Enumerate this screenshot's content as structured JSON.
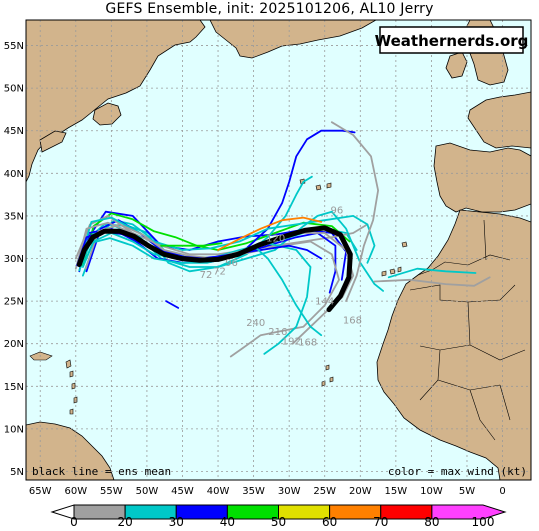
{
  "title": "GEFS Ensemble, init: 2025101206, AL10 Jerry",
  "brand": "Weathernerds.org",
  "footer_left": "black line = ens mean",
  "footer_right": "color = max wind (kt)",
  "lat_labels": [
    "55N",
    "50N",
    "45N",
    "40N",
    "35N",
    "30N",
    "25N",
    "20N",
    "15N",
    "10N",
    "5N"
  ],
  "lon_labels": [
    "65W",
    "60W",
    "55W",
    "50W",
    "45W",
    "40W",
    "35W",
    "30W",
    "25W",
    "20W",
    "15W",
    "10W",
    "5W",
    "0"
  ],
  "colors": {
    "ocean": "#e0ffff",
    "land": "#d2b48c",
    "grid": "#9a9a9a",
    "ens_mean": "#000000"
  },
  "colorbar": {
    "labels": [
      "0",
      "20",
      "30",
      "40",
      "50",
      "60",
      "70",
      "80",
      "100"
    ],
    "colors": [
      "#a0a0a0",
      "#00c8c8",
      "#0000ff",
      "#00e000",
      "#e0e000",
      "#ff8000",
      "#ff0000",
      "#ff40ff"
    ]
  },
  "hour_labels": [
    {
      "text": "96",
      "lon": -23.3,
      "lat": 35.3
    },
    {
      "text": "96",
      "lon": -38.1,
      "lat": 29.1
    },
    {
      "text": "72",
      "lon": -39.8,
      "lat": 28.1
    },
    {
      "text": "72",
      "lon": -41.7,
      "lat": 27.7
    },
    {
      "text": "120",
      "lon": -31.9,
      "lat": 32.0
    },
    {
      "text": "144",
      "lon": -25.0,
      "lat": 24.6
    },
    {
      "text": "240",
      "lon": -34.7,
      "lat": 22.1
    },
    {
      "text": "216",
      "lon": -31.6,
      "lat": 21.0
    },
    {
      "text": "192",
      "lon": -29.7,
      "lat": 19.9
    },
    {
      "text": "168",
      "lon": -27.4,
      "lat": 19.8
    },
    {
      "text": "168",
      "lon": -21.1,
      "lat": 22.4
    }
  ],
  "ens_mean": [
    [
      -59.5,
      29.3
    ],
    [
      -58.8,
      31.0
    ],
    [
      -57.6,
      32.5
    ],
    [
      -56.0,
      33.2
    ],
    [
      -53.8,
      33.2
    ],
    [
      -51.8,
      32.6
    ],
    [
      -49.8,
      31.5
    ],
    [
      -47.6,
      30.5
    ],
    [
      -45.2,
      30.0
    ],
    [
      -42.6,
      29.8
    ],
    [
      -40.0,
      29.9
    ],
    [
      -37.2,
      30.5
    ],
    [
      -34.2,
      31.6
    ],
    [
      -31.0,
      32.5
    ],
    [
      -27.8,
      33.3
    ],
    [
      -25.0,
      33.6
    ],
    [
      -22.8,
      32.8
    ],
    [
      -21.4,
      30.5
    ],
    [
      -21.6,
      27.8
    ],
    [
      -22.8,
      25.6
    ],
    [
      -24.4,
      24.0
    ]
  ],
  "tracks": [
    {
      "color": "#00c8c8",
      "points": [
        [
          -59.3,
          29.0
        ],
        [
          -58.0,
          32.5
        ],
        [
          -56.0,
          34.0
        ],
        [
          -52.6,
          33.8
        ],
        [
          -49.8,
          33.0
        ],
        [
          -47.6,
          31.0
        ],
        [
          -44.0,
          30.0
        ],
        [
          -40.0,
          30.0
        ],
        [
          -36.0,
          31.0
        ],
        [
          -32.0,
          32.0
        ],
        [
          -28.0,
          33.0
        ],
        [
          -25.0,
          33.5
        ],
        [
          -22.0,
          33.0
        ],
        [
          -20.5,
          31.0
        ]
      ]
    },
    {
      "color": "#0000ff",
      "points": [
        [
          -59.5,
          28.5
        ],
        [
          -58.6,
          32.0
        ],
        [
          -55.8,
          35.5
        ],
        [
          -52.0,
          35.0
        ],
        [
          -48.0,
          31.5
        ],
        [
          -44.0,
          31.0
        ],
        [
          -40.0,
          32.0
        ],
        [
          -36.0,
          32.6
        ],
        [
          -32.0,
          32.8
        ],
        [
          -28.0,
          33.4
        ],
        [
          -24.0,
          33.0
        ],
        [
          -22.0,
          30.8
        ],
        [
          -22.6,
          27.5
        ]
      ]
    },
    {
      "color": "#00e000",
      "points": [
        [
          -59.0,
          29.2
        ],
        [
          -57.5,
          33.8
        ],
        [
          -55.0,
          35.3
        ],
        [
          -52.0,
          34.6
        ],
        [
          -49.0,
          33.2
        ],
        [
          -46.0,
          32.5
        ],
        [
          -43.0,
          31.5
        ],
        [
          -40.0,
          31.0
        ],
        [
          -36.0,
          31.8
        ],
        [
          -32.0,
          33.0
        ],
        [
          -28.0,
          34.2
        ],
        [
          -24.0,
          33.8
        ],
        [
          -21.5,
          32.0
        ]
      ]
    },
    {
      "color": "#00c8c8",
      "points": [
        [
          -59.0,
          28.0
        ],
        [
          -57.0,
          32.5
        ],
        [
          -54.6,
          34.5
        ],
        [
          -52.0,
          34.0
        ],
        [
          -49.6,
          32.5
        ],
        [
          -47.0,
          29.5
        ],
        [
          -44.0,
          28.5
        ],
        [
          -40.0,
          29.0
        ],
        [
          -36.0,
          30.5
        ],
        [
          -33.0,
          32.5
        ],
        [
          -30.5,
          35.0
        ],
        [
          -29.0,
          37.5
        ],
        [
          -28.0,
          39.0
        ],
        [
          -26.8,
          39.6
        ]
      ]
    },
    {
      "color": "#0000ff",
      "points": [
        [
          -58.5,
          28.5
        ],
        [
          -56.5,
          33.5
        ],
        [
          -54.0,
          34.5
        ],
        [
          -51.0,
          33.0
        ],
        [
          -48.0,
          31.0
        ],
        [
          -44.0,
          30.0
        ],
        [
          -40.0,
          30.2
        ],
        [
          -36.0,
          31.2
        ],
        [
          -33.0,
          33.5
        ],
        [
          -31.0,
          36.5
        ],
        [
          -30.0,
          39.0
        ],
        [
          -29.0,
          42.0
        ],
        [
          -27.5,
          44.0
        ],
        [
          -25.5,
          45.0
        ],
        [
          -22.5,
          45.0
        ],
        [
          -20.8,
          44.8
        ]
      ]
    },
    {
      "color": "#a0a0a0",
      "points": [
        [
          -60.0,
          30.0
        ],
        [
          -58.0,
          34.0
        ],
        [
          -55.5,
          35.0
        ],
        [
          -52.0,
          33.0
        ],
        [
          -48.0,
          31.5
        ],
        [
          -44.0,
          30.5
        ],
        [
          -40.0,
          30.5
        ],
        [
          -36.0,
          31.0
        ],
        [
          -32.0,
          31.5
        ],
        [
          -28.0,
          32.0
        ],
        [
          -24.0,
          32.5
        ],
        [
          -21.0,
          33.0
        ],
        [
          -19.0,
          34.0
        ]
      ]
    },
    {
      "color": "#00c8c8",
      "points": [
        [
          -58.8,
          29.5
        ],
        [
          -57.0,
          33.0
        ],
        [
          -54.5,
          33.8
        ],
        [
          -51.0,
          32.5
        ],
        [
          -48.0,
          30.0
        ],
        [
          -44.0,
          29.0
        ],
        [
          -40.0,
          29.0
        ],
        [
          -36.0,
          30.0
        ],
        [
          -32.0,
          31.0
        ],
        [
          -28.0,
          33.8
        ],
        [
          -26.0,
          35.0
        ],
        [
          -24.0,
          35.5
        ],
        [
          -22.0,
          33.5
        ],
        [
          -20.0,
          29.5
        ],
        [
          -18.0,
          27.0
        ],
        [
          -16.8,
          26.2
        ]
      ]
    },
    {
      "color": "#0000ff",
      "points": [
        [
          -59.6,
          29.6
        ],
        [
          -58.2,
          33.0
        ],
        [
          -55.0,
          33.5
        ],
        [
          -51.5,
          32.0
        ],
        [
          -48.5,
          30.0
        ],
        [
          -45.0,
          29.5
        ],
        [
          -41.0,
          29.6
        ],
        [
          -37.0,
          30.5
        ],
        [
          -33.0,
          31.5
        ],
        [
          -29.0,
          32.5
        ],
        [
          -26.0,
          33.0
        ],
        [
          -23.5,
          31.5
        ],
        [
          -23.5,
          28.5
        ],
        [
          -24.3,
          26.0
        ]
      ]
    },
    {
      "color": "#00c8c8",
      "points": [
        [
          -59.2,
          30.3
        ],
        [
          -57.8,
          34.3
        ],
        [
          -55.0,
          34.8
        ],
        [
          -52.0,
          33.5
        ],
        [
          -49.0,
          32.0
        ],
        [
          -45.0,
          31.0
        ],
        [
          -41.0,
          31.2
        ],
        [
          -37.0,
          32.0
        ],
        [
          -33.0,
          33.5
        ],
        [
          -29.0,
          34.0
        ],
        [
          -25.0,
          34.5
        ],
        [
          -21.0,
          35.0
        ],
        [
          -19.0,
          34.0
        ],
        [
          -18.0,
          31.5
        ],
        [
          -19.0,
          29.5
        ]
      ]
    },
    {
      "color": "#a0a0a0",
      "points": [
        [
          -58.6,
          28.8
        ],
        [
          -56.8,
          33.2
        ],
        [
          -53.8,
          34.0
        ],
        [
          -50.6,
          32.8
        ],
        [
          -47.6,
          31.0
        ],
        [
          -44.0,
          30.3
        ],
        [
          -40.0,
          30.0
        ],
        [
          -35.0,
          30.8
        ],
        [
          -31.0,
          31.5
        ],
        [
          -27.0,
          32.0
        ],
        [
          -24.0,
          30.5
        ],
        [
          -23.0,
          27.5
        ],
        [
          -25.0,
          24.5
        ],
        [
          -28.0,
          22.0
        ],
        [
          -31.0,
          21.5
        ],
        [
          -34.0,
          21.0
        ],
        [
          -36.5,
          19.5
        ],
        [
          -38.2,
          18.5
        ]
      ]
    },
    {
      "color": "#00c8c8",
      "points": [
        [
          -59.0,
          29.0
        ],
        [
          -57.5,
          32.0
        ],
        [
          -55.0,
          33.0
        ],
        [
          -52.0,
          32.0
        ],
        [
          -49.0,
          30.5
        ],
        [
          -45.0,
          30.0
        ],
        [
          -41.0,
          30.0
        ],
        [
          -37.0,
          31.0
        ],
        [
          -33.0,
          31.8
        ],
        [
          -29.0,
          31.0
        ],
        [
          -27.0,
          29.0
        ],
        [
          -27.5,
          25.5
        ],
        [
          -29.0,
          22.0
        ],
        [
          -31.5,
          20.0
        ],
        [
          -33.5,
          18.8
        ]
      ]
    },
    {
      "color": "#a0a0a0",
      "points": [
        [
          -60.0,
          28.8
        ],
        [
          -58.5,
          33.5
        ],
        [
          -55.5,
          34.2
        ],
        [
          -52.0,
          33.0
        ],
        [
          -49.0,
          31.0
        ],
        [
          -45.0,
          30.0
        ],
        [
          -41.0,
          30.0
        ],
        [
          -37.0,
          30.8
        ],
        [
          -33.0,
          32.0
        ],
        [
          -29.0,
          33.0
        ],
        [
          -25.0,
          33.0
        ],
        [
          -22.0,
          31.0
        ],
        [
          -21.0,
          28.0
        ],
        [
          -22.5,
          25.5
        ],
        [
          -24.5,
          24.0
        ],
        [
          -27.0,
          22.0
        ],
        [
          -29.5,
          20.0
        ]
      ]
    },
    {
      "color": "#0000ff",
      "points": [
        [
          -59.8,
          29.2
        ],
        [
          -58.5,
          32.5
        ],
        [
          -56.0,
          33.2
        ],
        [
          -53.0,
          32.8
        ],
        [
          -50.0,
          31.5
        ],
        [
          -46.0,
          30.3
        ],
        [
          -42.0,
          30.0
        ],
        [
          -38.0,
          30.5
        ],
        [
          -34.0,
          31.0
        ],
        [
          -30.0,
          31.5
        ],
        [
          -27.5,
          31.0
        ],
        [
          -25.5,
          30.0
        ]
      ]
    },
    {
      "color": "#00c8c8",
      "points": [
        [
          -59.5,
          28.6
        ],
        [
          -58.0,
          31.8
        ],
        [
          -55.2,
          32.4
        ],
        [
          -52.0,
          31.5
        ],
        [
          -49.0,
          30.0
        ],
        [
          -45.5,
          29.5
        ],
        [
          -41.5,
          29.5
        ],
        [
          -38.0,
          30.2
        ],
        [
          -35.0,
          31.5
        ],
        [
          -33.0,
          30.0
        ],
        [
          -31.0,
          27.5
        ],
        [
          -29.0,
          24.5
        ],
        [
          -27.0,
          22.0
        ],
        [
          -25.5,
          21.0
        ]
      ]
    },
    {
      "color": "#ff8000",
      "points": [
        [
          -40.0,
          31.0
        ],
        [
          -37.0,
          32.3
        ],
        [
          -34.0,
          33.5
        ],
        [
          -31.0,
          34.5
        ],
        [
          -28.0,
          34.8
        ],
        [
          -25.5,
          34.3
        ]
      ]
    },
    {
      "color": "#00e000",
      "points": [
        [
          -48.0,
          31.5
        ],
        [
          -45.0,
          31.5
        ],
        [
          -42.0,
          31.5
        ],
        [
          -39.5,
          31.8
        ]
      ]
    },
    {
      "color": "#0000ff",
      "points": [
        [
          -47.3,
          25.0
        ],
        [
          -45.6,
          24.2
        ]
      ]
    },
    {
      "color": "#a0a0a0",
      "points": [
        [
          -24.0,
          46.0
        ],
        [
          -21.0,
          44.5
        ],
        [
          -18.5,
          42.0
        ],
        [
          -17.5,
          38.0
        ],
        [
          -18.2,
          34.5
        ],
        [
          -19.5,
          31.5
        ],
        [
          -20.5,
          28.0
        ],
        [
          -22.0,
          25.0
        ]
      ]
    },
    {
      "color": "#a0a0a0",
      "points": [
        [
          -18.0,
          27.3
        ],
        [
          -13.0,
          27.5
        ],
        [
          -8.0,
          27.0
        ],
        [
          -4.0,
          26.8
        ],
        [
          -1.8,
          27.8
        ]
      ]
    },
    {
      "color": "#00c8c8",
      "points": [
        [
          -16.0,
          27.8
        ],
        [
          -12.0,
          28.8
        ],
        [
          -8.0,
          28.5
        ],
        [
          -3.8,
          28.3
        ]
      ]
    }
  ]
}
